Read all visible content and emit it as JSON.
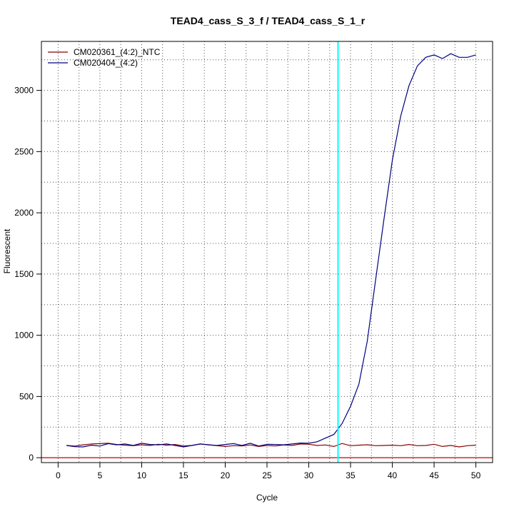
{
  "chart_data": {
    "type": "line",
    "title": "TEAD4_cass_S_3_f / TEAD4_cass_S_1_r",
    "xlabel": "Cycle",
    "ylabel": "Fluorescent",
    "xlim": [
      -2,
      52
    ],
    "ylim": [
      -40,
      3400
    ],
    "xticks": [
      0,
      5,
      10,
      15,
      20,
      25,
      30,
      35,
      40,
      45,
      50
    ],
    "xtick_labels": [
      "0",
      "5",
      "10",
      "15",
      "20",
      "25",
      "30",
      "35",
      "40",
      "45",
      "50"
    ],
    "yticks": [
      0,
      500,
      1000,
      1500,
      2000,
      2500,
      3000
    ],
    "ytick_labels": [
      "0",
      "500",
      "1000",
      "1500",
      "2000",
      "2500",
      "3000"
    ],
    "grid": true,
    "legend_position": "top-left",
    "threshold_cycle": 33.5,
    "threshold_color": "#00ffff",
    "baseline_value": 0,
    "baseline_color": "#cc0000",
    "series": [
      {
        "name": "CM020361_(4:2)_NTC",
        "color": "#8b0000",
        "x": [
          1,
          2,
          3,
          4,
          5,
          6,
          7,
          8,
          9,
          10,
          11,
          12,
          13,
          14,
          15,
          16,
          17,
          18,
          19,
          20,
          21,
          22,
          23,
          24,
          25,
          26,
          27,
          28,
          29,
          30,
          31,
          32,
          33,
          34,
          35,
          36,
          37,
          38,
          39,
          40,
          41,
          42,
          43,
          44,
          45,
          46,
          47,
          48,
          49,
          50
        ],
        "y": [
          100,
          95,
          105,
          112,
          115,
          118,
          108,
          102,
          98,
          105,
          100,
          110,
          102,
          108,
          96,
          100,
          112,
          106,
          98,
          92,
          98,
          96,
          104,
          92,
          100,
          96,
          104,
          100,
          112,
          110,
          100,
          104,
          92,
          116,
          98,
          102,
          106,
          98,
          100,
          102,
          98,
          108,
          98,
          100,
          110,
          92,
          100,
          88,
          98,
          102
        ]
      },
      {
        "name": "CM020404_(4:2)",
        "color": "#000080",
        "x": [
          1,
          2,
          3,
          4,
          5,
          6,
          7,
          8,
          9,
          10,
          11,
          12,
          13,
          14,
          15,
          16,
          17,
          18,
          19,
          20,
          21,
          22,
          23,
          24,
          25,
          26,
          27,
          28,
          29,
          30,
          31,
          32,
          33,
          34,
          35,
          36,
          37,
          38,
          39,
          40,
          41,
          42,
          43,
          44,
          45,
          46,
          47,
          48,
          49,
          50
        ],
        "y": [
          100,
          90,
          88,
          102,
          95,
          115,
          105,
          112,
          100,
          118,
          108,
          105,
          112,
          100,
          88,
          100,
          112,
          105,
          100,
          108,
          115,
          100,
          118,
          95,
          110,
          108,
          105,
          112,
          120,
          118,
          130,
          160,
          190,
          280,
          420,
          600,
          950,
          1450,
          1950,
          2430,
          2790,
          3040,
          3200,
          3270,
          3290,
          3260,
          3300,
          3270,
          3270,
          3290
        ]
      }
    ]
  }
}
